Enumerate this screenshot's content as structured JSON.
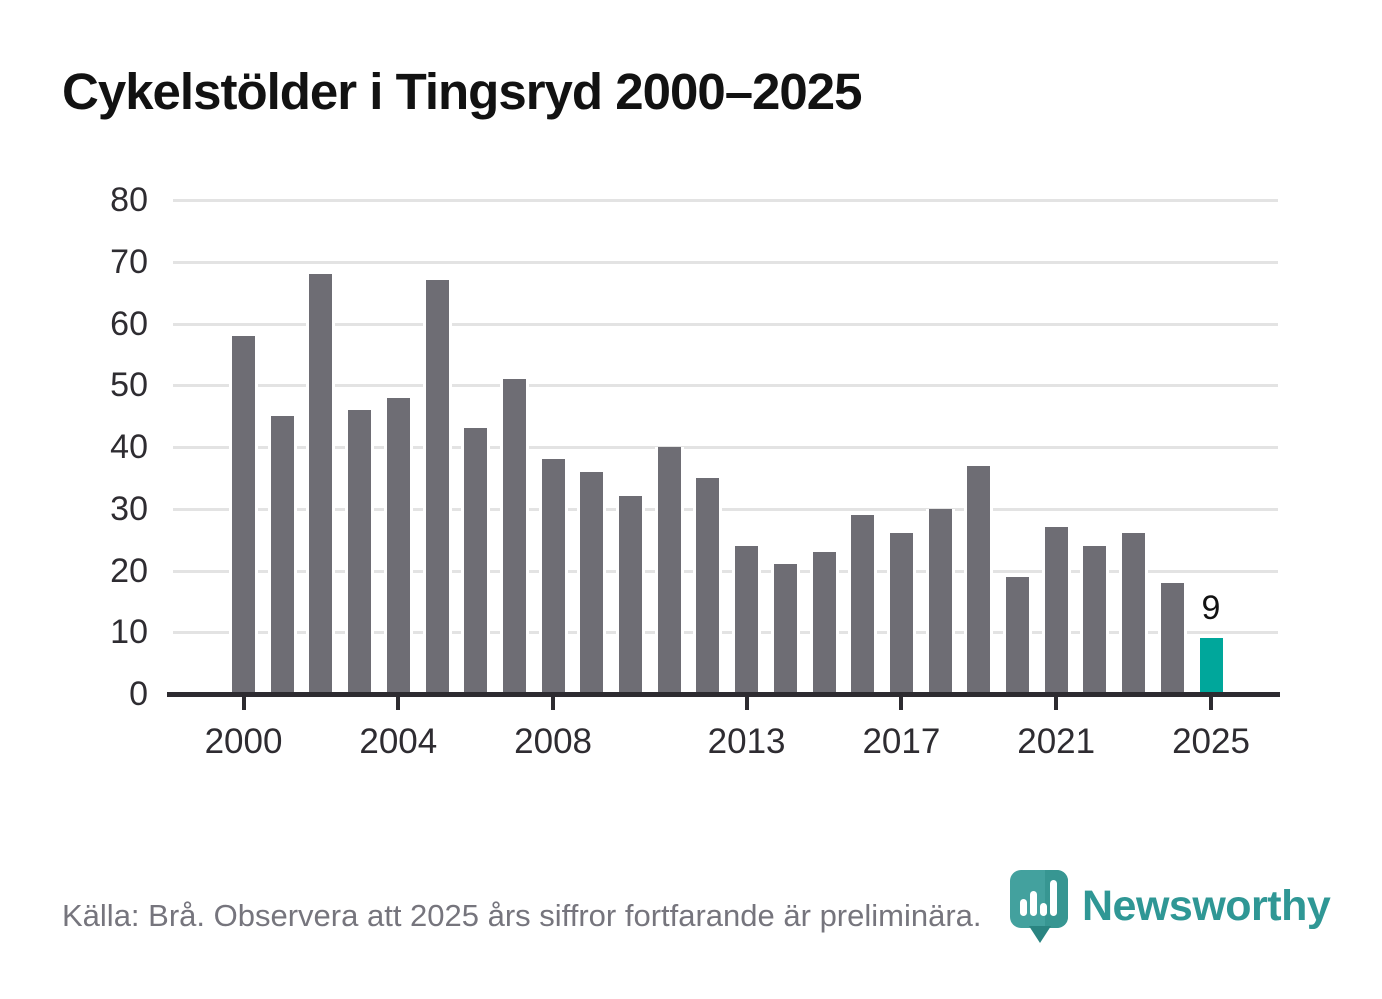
{
  "title": "Cykelstölder i Tingsryd 2000–2025",
  "source_note": "Källa: Brå. Observera att 2025 års siffror fortfarande är preliminära.",
  "logo": {
    "wordmark": "Newsworthy",
    "icon": "newsworthy-pin-barchart-icon"
  },
  "colors": {
    "bar": "#6e6d74",
    "bar_highlight": "#00a79b",
    "gridline": "#e3e3e3",
    "axis": "#2d2b30",
    "tick_text": "#2e2c31",
    "title_text": "#121212",
    "annotation_text": "#121212",
    "source_text": "#76757d",
    "logo_teal": "#2f9795",
    "logo_icon": "#43a19e",
    "logo_icon_shade": "#379692",
    "logo_icon_tail": "#2a8481",
    "logo_icon_bars": "#ffffff"
  },
  "chart_data": {
    "type": "bar",
    "title": "Cykelstölder i Tingsryd 2000–2025",
    "x": [
      2000,
      2001,
      2002,
      2003,
      2004,
      2005,
      2006,
      2007,
      2008,
      2009,
      2010,
      2011,
      2012,
      2013,
      2014,
      2015,
      2016,
      2017,
      2018,
      2019,
      2020,
      2021,
      2022,
      2023,
      2024,
      2025
    ],
    "values": [
      58,
      45,
      68,
      46,
      48,
      67,
      43,
      51,
      38,
      36,
      32,
      40,
      35,
      24,
      21,
      23,
      29,
      26,
      30,
      37,
      19,
      27,
      24,
      26,
      18,
      9
    ],
    "highlight_year": 2025,
    "annotations": [
      {
        "year": 2025,
        "label": "9"
      }
    ],
    "yticks": [
      0,
      10,
      20,
      30,
      40,
      50,
      60,
      70,
      80
    ],
    "x_tick_years": [
      2000,
      2004,
      2008,
      2013,
      2017,
      2021,
      2025
    ],
    "ylim": [
      0,
      80
    ],
    "xlabel": "",
    "ylabel": "",
    "grid": true,
    "legend": false
  }
}
